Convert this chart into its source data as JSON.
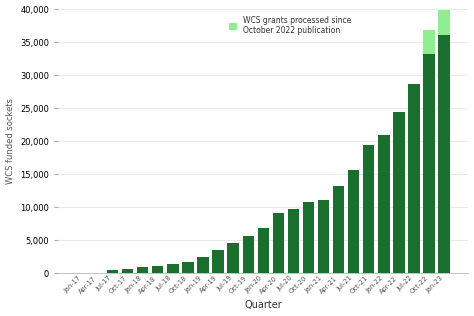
{
  "quarters": [
    "Jan-17",
    "Apr-17",
    "Jul-17",
    "Oct-17",
    "Jan-18",
    "Apr-18",
    "Jul-18",
    "Oct-18",
    "Jan-19",
    "Apr-19",
    "Jul-19",
    "Oct-19",
    "Jan-20",
    "Apr-20",
    "Jul-20",
    "Oct-20",
    "Jan-21",
    "Apr-21",
    "Jul-21",
    "Oct-21",
    "Jan-22",
    "Apr-22",
    "Jul-22",
    "Oct-22",
    "Jan-23"
  ],
  "values_green": [
    50,
    100,
    450,
    700,
    950,
    1150,
    1450,
    1750,
    2500,
    3600,
    4600,
    5600,
    6900,
    9100,
    9800,
    10800,
    11100,
    13300,
    15600,
    19400,
    21000,
    24500,
    28700,
    33200,
    36100
  ],
  "values_light": [
    0,
    0,
    0,
    0,
    0,
    0,
    0,
    0,
    0,
    0,
    0,
    0,
    0,
    0,
    0,
    0,
    0,
    0,
    0,
    0,
    0,
    0,
    0,
    3700,
    3700
  ],
  "dark_green": "#1a6e2e",
  "light_green": "#90ee90",
  "background": "#ffffff",
  "ylabel": "WCS funded sockets",
  "xlabel": "Quarter",
  "ylim": [
    0,
    40000
  ],
  "yticks": [
    0,
    5000,
    10000,
    15000,
    20000,
    25000,
    30000,
    35000,
    40000
  ],
  "legend_label": "WCS grants processed since\nOctober 2022 publication",
  "grid_color": "#e0e0e0"
}
